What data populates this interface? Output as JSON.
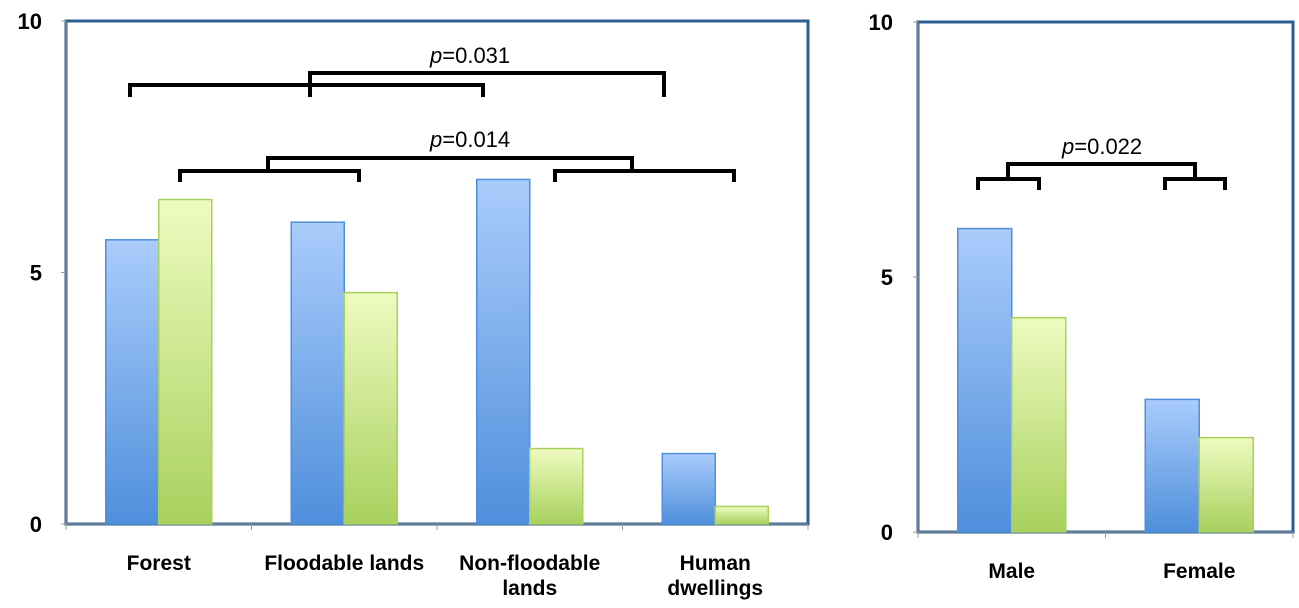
{
  "chart_data": [
    {
      "type": "bar",
      "categories": [
        [
          "Forest"
        ],
        [
          "Floodable lands"
        ],
        [
          "Non-floodable",
          "lands"
        ],
        [
          "Human",
          "dwellings"
        ]
      ],
      "series": [
        {
          "values": [
            5.65,
            6.0,
            6.85,
            1.4
          ]
        },
        {
          "values": [
            6.45,
            4.6,
            1.5,
            0.35
          ]
        }
      ],
      "ylim": [
        0,
        10
      ],
      "yticks": [
        "0",
        "5",
        "10"
      ],
      "grid": false,
      "annotations": [
        {
          "p_label": "p",
          "p_value": "=0.031"
        },
        {
          "p_label": "p",
          "p_value": "=0.014"
        }
      ]
    },
    {
      "type": "bar",
      "categories": [
        [
          "Male"
        ],
        [
          "Female"
        ]
      ],
      "series": [
        {
          "values": [
            5.95,
            2.6
          ]
        },
        {
          "values": [
            4.2,
            1.85
          ]
        }
      ],
      "ylim": [
        0,
        10
      ],
      "yticks": [
        "0",
        "5",
        "10"
      ],
      "grid": false,
      "annotations": [
        {
          "p_label": "p",
          "p_value": "=0.022"
        }
      ]
    }
  ],
  "colors": {
    "series_blue_top": "#aaccfb",
    "series_blue_bottom": "#4f8fdc",
    "series_green_top": "#eefbc0",
    "series_green_bottom": "#a8d15e",
    "frame": "#2c5d8f"
  }
}
